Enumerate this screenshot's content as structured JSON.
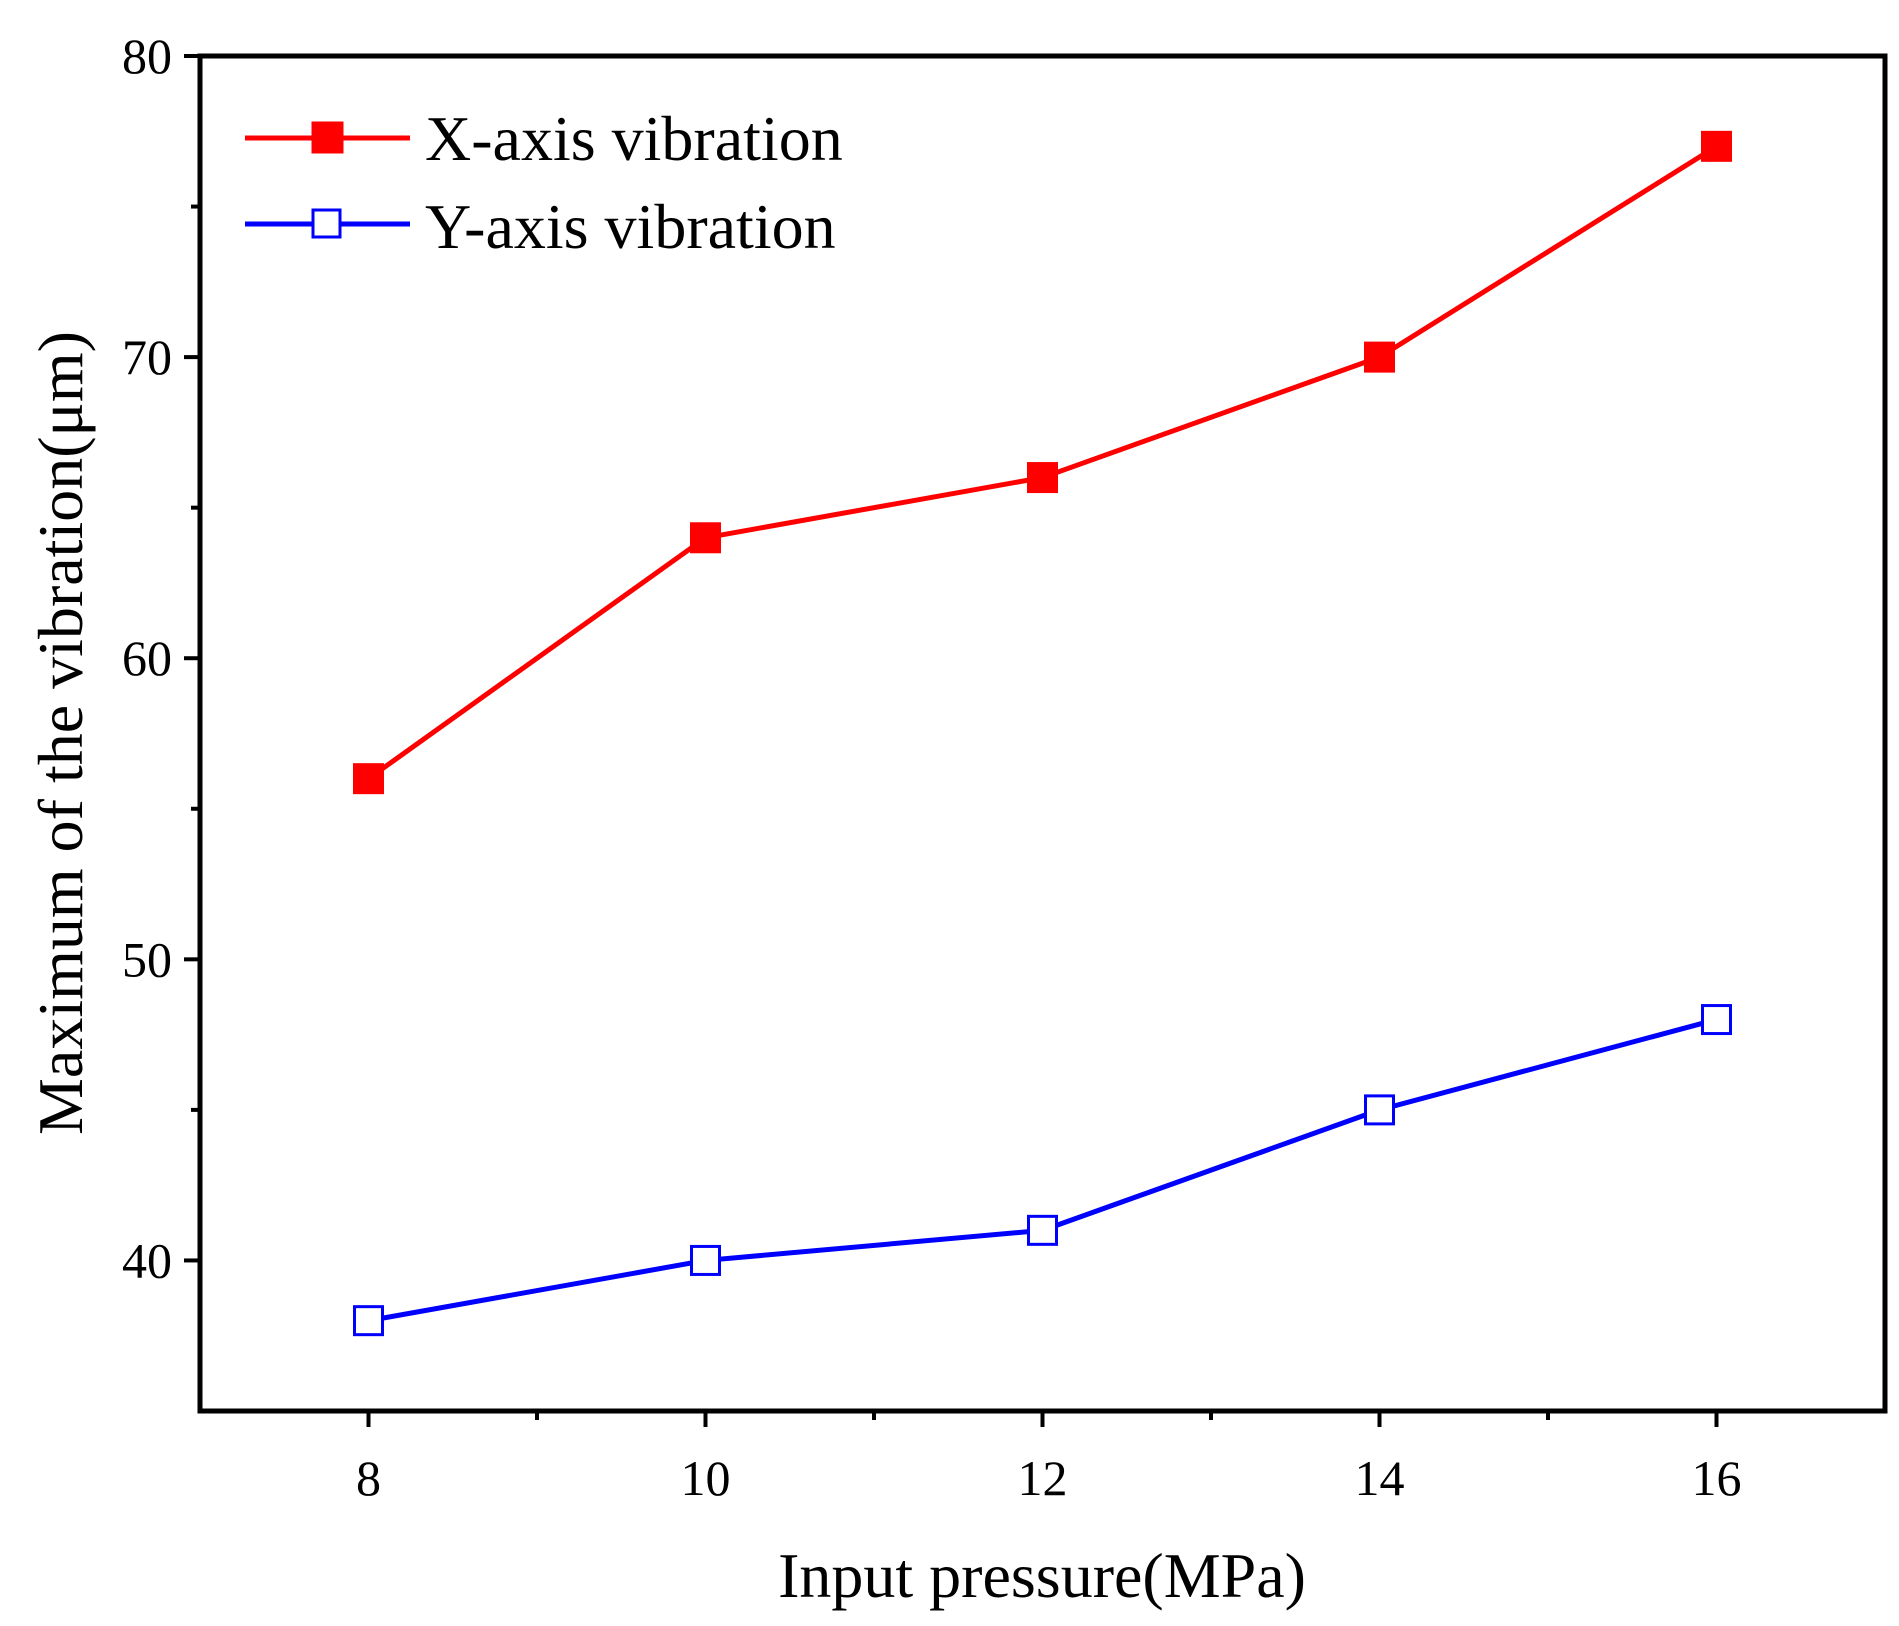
{
  "chart_data": {
    "type": "line",
    "title": "",
    "xlabel": "Input pressure(MPa)",
    "ylabel": "Maximum of the vibration(μm)",
    "xlim": [
      7,
      17
    ],
    "ylim": [
      35,
      80
    ],
    "x_ticks": [
      8,
      10,
      12,
      14,
      16
    ],
    "x_tick_labels": [
      "8",
      "10",
      "12",
      "14",
      "16"
    ],
    "x_minor_ticks": [
      9,
      11,
      13,
      15
    ],
    "y_ticks": [
      40,
      50,
      60,
      70,
      80
    ],
    "y_tick_labels": [
      "40",
      "50",
      "60",
      "70",
      "80"
    ],
    "y_minor_ticks": [
      45,
      55,
      65,
      75
    ],
    "grid": false,
    "legend_position": "top-left",
    "x": [
      8,
      10,
      12,
      14,
      16
    ],
    "series": [
      {
        "name": "X-axis vibration",
        "values": [
          56,
          64,
          66,
          70,
          77
        ],
        "color": "#ff0000",
        "marker": "filled-square"
      },
      {
        "name": "Y-axis vibration",
        "values": [
          38,
          40,
          41,
          45,
          48
        ],
        "color": "#0000ff",
        "marker": "open-square"
      }
    ]
  }
}
